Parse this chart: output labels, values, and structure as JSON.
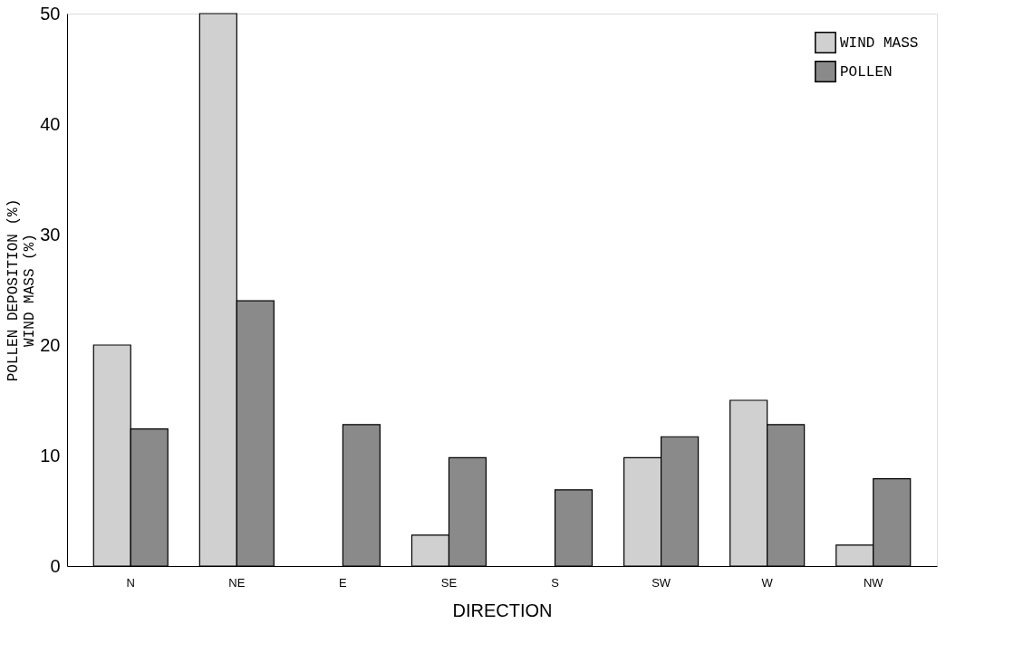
{
  "chart_data": {
    "type": "bar",
    "xlabel": "DIRECTION",
    "ylabel": "POLLEN DEPOSITION (%)\nWIND MASS (%)",
    "categories": [
      "N",
      "NE",
      "E",
      "SE",
      "S",
      "SW",
      "W",
      "NW"
    ],
    "series": [
      {
        "name": "WIND MASS",
        "color": "#d0d0d0",
        "values": [
          20,
          50,
          null,
          2.8,
          null,
          9.8,
          15.0,
          1.9
        ]
      },
      {
        "name": "POLLEN",
        "color": "#8a8a8a",
        "values": [
          12.4,
          24,
          12.8,
          9.8,
          6.9,
          11.7,
          12.8,
          7.9
        ]
      }
    ],
    "ylim": [
      0,
      50
    ],
    "yticks": [
      0,
      10,
      20,
      30,
      40,
      50
    ],
    "grid": false,
    "legend": "top right"
  }
}
